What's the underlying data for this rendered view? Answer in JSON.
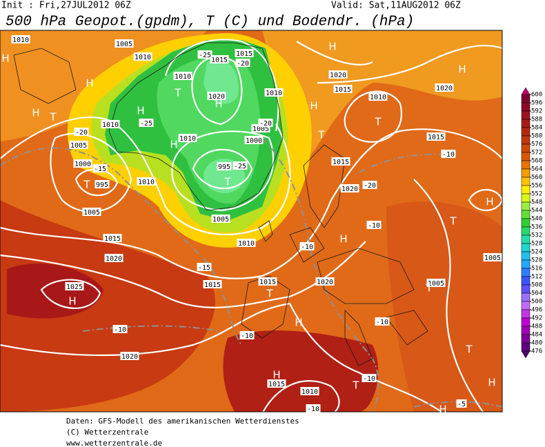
{
  "header": {
    "init": "Init : Fri,27JUL2012 06Z",
    "valid": "Valid: Sat,11AUG2012 06Z",
    "title": "500 hPa Geopot.(gpdm), T (C) und Bodendr. (hPa)"
  },
  "colorbar": {
    "levels": [
      600,
      596,
      592,
      588,
      584,
      580,
      576,
      572,
      568,
      564,
      560,
      556,
      552,
      548,
      544,
      540,
      536,
      532,
      528,
      524,
      520,
      516,
      512,
      508,
      504,
      500,
      496,
      492,
      488,
      484,
      480,
      476
    ]
  },
  "isobar_labels": [
    "1010",
    "1005",
    "1010",
    "1015",
    "1015",
    "1010",
    "1020",
    "1010",
    "1020",
    "1015",
    "1010",
    "1020",
    "1010",
    "1005",
    "1005",
    "1000",
    "1010",
    "1000",
    "995",
    "995",
    "1010",
    "1015",
    "1020",
    "1015",
    "1005",
    "1005",
    "1015",
    "1010",
    "1020",
    "1025",
    "1015",
    "1015",
    "1020",
    "1005",
    "1020",
    "1015",
    "1010",
    "1005"
  ],
  "temperature_labels": [
    "-25",
    "-20",
    "-25",
    "-20",
    "-15",
    "-25",
    "-20",
    "-20",
    "-10",
    "-10",
    "-10",
    "-15",
    "-10",
    "-10",
    "-10",
    "-10",
    "-10",
    "-5"
  ],
  "pressure_centers": [
    "H",
    "H",
    "T",
    "H",
    "H",
    "H",
    "T",
    "H",
    "T",
    "H",
    "H",
    "T",
    "H",
    "T",
    "H",
    "T",
    "H",
    "H",
    "T",
    "H",
    "T",
    "T",
    "H",
    "H",
    "T",
    "H",
    "T"
  ],
  "footer": {
    "lines": [
      "Daten: GFS-Modell des amerikanischen Wetterdienstes",
      "(C) Wetterzentrale",
      "www.wetterzentrale.de"
    ]
  }
}
